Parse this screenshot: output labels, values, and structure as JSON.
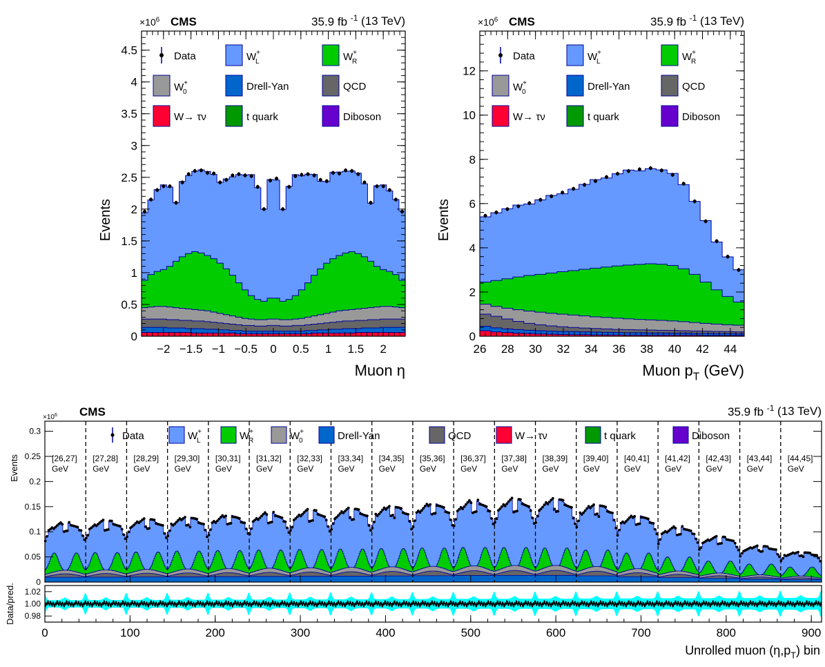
{
  "colors": {
    "WL": "#6699ff",
    "WR": "#00cc00",
    "W0": "#999999",
    "DY": "#0066cc",
    "QCD": "#666666",
    "Wtau": "#ff0033",
    "top": "#009900",
    "Diboson": "#6600cc",
    "band": "#00ffff",
    "outline": "#000099"
  },
  "legend": {
    "data": "Data",
    "WL": "W",
    "WL_sub": "L",
    "WR": "W",
    "WR_sub": "R",
    "W0": "W",
    "W0_sub": "0",
    "charge_sup": "+",
    "DY": "Drell-Yan",
    "QCD": "QCD",
    "Wtau": "W→ τν",
    "top": "t quark",
    "Diboson": "Diboson"
  },
  "header": {
    "cms": "CMS",
    "lumi": "35.9 fb",
    "lumi_sup": "-1",
    "energy": "(13 TeV)",
    "scale": "×10",
    "scale_sup": "6"
  },
  "chart_data": [
    {
      "type": "area",
      "name": "muon-eta",
      "xlabel": "Muon η",
      "ylabel": "Events",
      "ylim": [
        0,
        4.8
      ],
      "yscale": "×10^6",
      "xlim": [
        -2.4,
        2.4
      ],
      "xticks": [
        -2,
        -1.5,
        -1,
        -0.5,
        0,
        0.5,
        1,
        1.5,
        2
      ],
      "xtick_labels": [
        "−2",
        "−1.5",
        "−1",
        "−0.5",
        "0",
        "0.5",
        "1",
        "1.5",
        "2"
      ],
      "yticks": [
        0,
        0.5,
        1,
        1.5,
        2,
        2.5,
        3,
        3.5,
        4,
        4.5
      ],
      "ytick_labels": [
        "0",
        "0.5",
        "1",
        "1.5",
        "2",
        "2.5",
        "3",
        "3.5",
        "4",
        "4.5"
      ],
      "bins": 48,
      "data": [
        1.96,
        2.15,
        2.3,
        2.36,
        2.36,
        2.1,
        2.42,
        2.55,
        2.6,
        2.61,
        2.57,
        2.56,
        2.42,
        2.46,
        2.53,
        2.55,
        2.53,
        2.52,
        2.35,
        2.0,
        2.45,
        2.48,
        2.0,
        2.35,
        2.52,
        2.54,
        2.55,
        2.53,
        2.46,
        2.44,
        2.57,
        2.56,
        2.61,
        2.6,
        2.55,
        2.42,
        2.1,
        2.36,
        2.36,
        2.3,
        2.15,
        1.96
      ],
      "series_WR_top": [
        0.88,
        0.97,
        1.02,
        1.05,
        1.1,
        1.18,
        1.25,
        1.3,
        1.33,
        1.31,
        1.27,
        1.22,
        1.15,
        1.06,
        0.96,
        0.84,
        0.73,
        0.64,
        0.58,
        0.55,
        0.6,
        0.6,
        0.55,
        0.58,
        0.64,
        0.73,
        0.84,
        0.96,
        1.06,
        1.15,
        1.22,
        1.27,
        1.31,
        1.33,
        1.3,
        1.25,
        1.18,
        1.1,
        1.05,
        1.02,
        0.97,
        0.88
      ],
      "series_W0_top": [
        0.45,
        0.46,
        0.47,
        0.47,
        0.46,
        0.45,
        0.44,
        0.43,
        0.42,
        0.41,
        0.4,
        0.38,
        0.36,
        0.34,
        0.32,
        0.3,
        0.28,
        0.27,
        0.26,
        0.26,
        0.27,
        0.27,
        0.26,
        0.26,
        0.27,
        0.28,
        0.3,
        0.32,
        0.34,
        0.36,
        0.38,
        0.4,
        0.41,
        0.42,
        0.43,
        0.44,
        0.45,
        0.46,
        0.47,
        0.47,
        0.46,
        0.45
      ],
      "series_QCD_top": [
        0.27,
        0.27,
        0.27,
        0.27,
        0.26,
        0.26,
        0.25,
        0.25,
        0.24,
        0.24,
        0.23,
        0.22,
        0.21,
        0.2,
        0.19,
        0.18,
        0.17,
        0.17,
        0.16,
        0.16,
        0.17,
        0.17,
        0.16,
        0.16,
        0.17,
        0.17,
        0.18,
        0.19,
        0.2,
        0.21,
        0.22,
        0.23,
        0.24,
        0.24,
        0.25,
        0.25,
        0.26,
        0.26,
        0.27,
        0.27,
        0.27,
        0.27
      ],
      "series_DY_top": [
        0.14,
        0.14,
        0.14,
        0.14,
        0.13,
        0.13,
        0.13,
        0.12,
        0.12,
        0.12,
        0.11,
        0.11,
        0.1,
        0.1,
        0.09,
        0.09,
        0.08,
        0.08,
        0.08,
        0.08,
        0.08,
        0.08,
        0.08,
        0.08,
        0.08,
        0.08,
        0.09,
        0.09,
        0.1,
        0.1,
        0.11,
        0.11,
        0.12,
        0.12,
        0.12,
        0.13,
        0.13,
        0.13,
        0.14,
        0.14,
        0.14,
        0.14
      ],
      "series_Wtau_top": [
        0.06,
        0.06,
        0.06,
        0.06,
        0.06,
        0.06,
        0.06,
        0.06,
        0.05,
        0.05,
        0.05,
        0.05,
        0.05,
        0.05,
        0.05,
        0.04,
        0.04,
        0.04,
        0.04,
        0.04,
        0.04,
        0.04,
        0.04,
        0.04,
        0.04,
        0.04,
        0.04,
        0.05,
        0.05,
        0.05,
        0.05,
        0.05,
        0.05,
        0.05,
        0.06,
        0.06,
        0.06,
        0.06,
        0.06,
        0.06,
        0.06,
        0.06
      ]
    },
    {
      "type": "area",
      "name": "muon-pt",
      "xlabel": "Muon p",
      "xlabel_sub": "T",
      "xlabel_unit": "(GeV)",
      "ylabel": "Events",
      "ylim": [
        0,
        13.8
      ],
      "yscale": "×10^6",
      "xlim": [
        26,
        45
      ],
      "xticks": [
        26,
        28,
        30,
        32,
        34,
        36,
        38,
        40,
        42,
        44
      ],
      "xtick_labels": [
        "26",
        "28",
        "30",
        "32",
        "34",
        "36",
        "38",
        "40",
        "42",
        "44"
      ],
      "yticks": [
        0,
        2,
        4,
        6,
        8,
        10,
        12
      ],
      "ytick_labels": [
        "0",
        "2",
        "4",
        "6",
        "8",
        "10",
        "12"
      ],
      "data": [
        5.45,
        5.6,
        5.75,
        5.88,
        6.02,
        6.17,
        6.33,
        6.5,
        6.67,
        6.85,
        7.02,
        7.2,
        7.35,
        7.47,
        7.55,
        7.6,
        7.5,
        7.3,
        6.9,
        6.1,
        5.2,
        4.3,
        3.6,
        3.0
      ],
      "series_WR_top": [
        2.45,
        2.52,
        2.6,
        2.68,
        2.75,
        2.8,
        2.86,
        2.92,
        2.97,
        3.03,
        3.08,
        3.13,
        3.18,
        3.22,
        3.25,
        3.28,
        3.26,
        3.2,
        3.05,
        2.8,
        2.45,
        2.1,
        1.8,
        1.55
      ],
      "series_W0_top": [
        1.45,
        1.35,
        1.27,
        1.2,
        1.14,
        1.09,
        1.04,
        1.0,
        0.96,
        0.92,
        0.88,
        0.85,
        0.82,
        0.79,
        0.76,
        0.74,
        0.72,
        0.69,
        0.66,
        0.62,
        0.58,
        0.55,
        0.52,
        0.5
      ],
      "series_QCD_top": [
        1.0,
        0.9,
        0.78,
        0.67,
        0.58,
        0.52,
        0.47,
        0.43,
        0.4,
        0.37,
        0.35,
        0.33,
        0.31,
        0.3,
        0.29,
        0.28,
        0.27,
        0.26,
        0.25,
        0.24,
        0.23,
        0.22,
        0.21,
        0.2
      ],
      "series_DY_top": [
        0.45,
        0.38,
        0.33,
        0.3,
        0.27,
        0.25,
        0.23,
        0.22,
        0.21,
        0.2,
        0.19,
        0.18,
        0.17,
        0.16,
        0.16,
        0.15,
        0.15,
        0.14,
        0.14,
        0.13,
        0.13,
        0.12,
        0.12,
        0.11
      ],
      "series_Wtau_top": [
        0.25,
        0.2,
        0.17,
        0.14,
        0.12,
        0.1,
        0.09,
        0.08,
        0.07,
        0.07,
        0.06,
        0.06,
        0.06,
        0.05,
        0.05,
        0.05,
        0.05,
        0.05,
        0.05,
        0.05,
        0.04,
        0.04,
        0.04,
        0.04
      ]
    },
    {
      "type": "area",
      "name": "unrolled",
      "xlabel": "Unrolled muon (η,p",
      "xlabel_sub": "T",
      "xlabel_end": ") bin",
      "ylabel": "Events",
      "ylim": [
        0,
        0.32
      ],
      "yscale": "×10^6",
      "xlim": [
        0,
        912
      ],
      "xticks": [
        0,
        100,
        200,
        300,
        400,
        500,
        600,
        700,
        800,
        900
      ],
      "xtick_labels": [
        "0",
        "100",
        "200",
        "300",
        "400",
        "500",
        "600",
        "700",
        "800",
        "900"
      ],
      "yticks": [
        0,
        0.05,
        0.1,
        0.15,
        0.2,
        0.25,
        0.3
      ],
      "ytick_labels": [
        "0",
        "0.05",
        "0.1",
        "0.15",
        "0.2",
        "0.25",
        "0.3"
      ],
      "pt_bins": [
        "[26,27]",
        "[27,28]",
        "[28,29]",
        "[29,30]",
        "[30,31]",
        "[31,32]",
        "[32,33]",
        "[33,34]",
        "[34,35]",
        "[35,36]",
        "[36,37]",
        "[37,38]",
        "[38,39]",
        "[39,40]",
        "[40,41]",
        "[41,42]",
        "[42,43]",
        "[43,44]",
        "[44,45]"
      ],
      "pt_bin_unit": "GeV",
      "block_height": [
        0.118,
        0.122,
        0.126,
        0.13,
        0.134,
        0.138,
        0.143,
        0.147,
        0.152,
        0.157,
        0.162,
        0.165,
        0.166,
        0.155,
        0.133,
        0.11,
        0.09,
        0.072,
        0.06
      ],
      "block_WR": [
        0.058,
        0.059,
        0.06,
        0.062,
        0.063,
        0.064,
        0.065,
        0.066,
        0.067,
        0.068,
        0.069,
        0.069,
        0.068,
        0.064,
        0.058,
        0.05,
        0.042,
        0.036,
        0.03
      ],
      "ratio_ylabel": "Data/pred.",
      "ratio_yticks": [
        0.98,
        1.0,
        1.02
      ],
      "ratio_ytick_labels": [
        "0.98",
        "1.00",
        "1.02"
      ],
      "ratio_ylim": [
        0.97,
        1.03
      ]
    }
  ]
}
